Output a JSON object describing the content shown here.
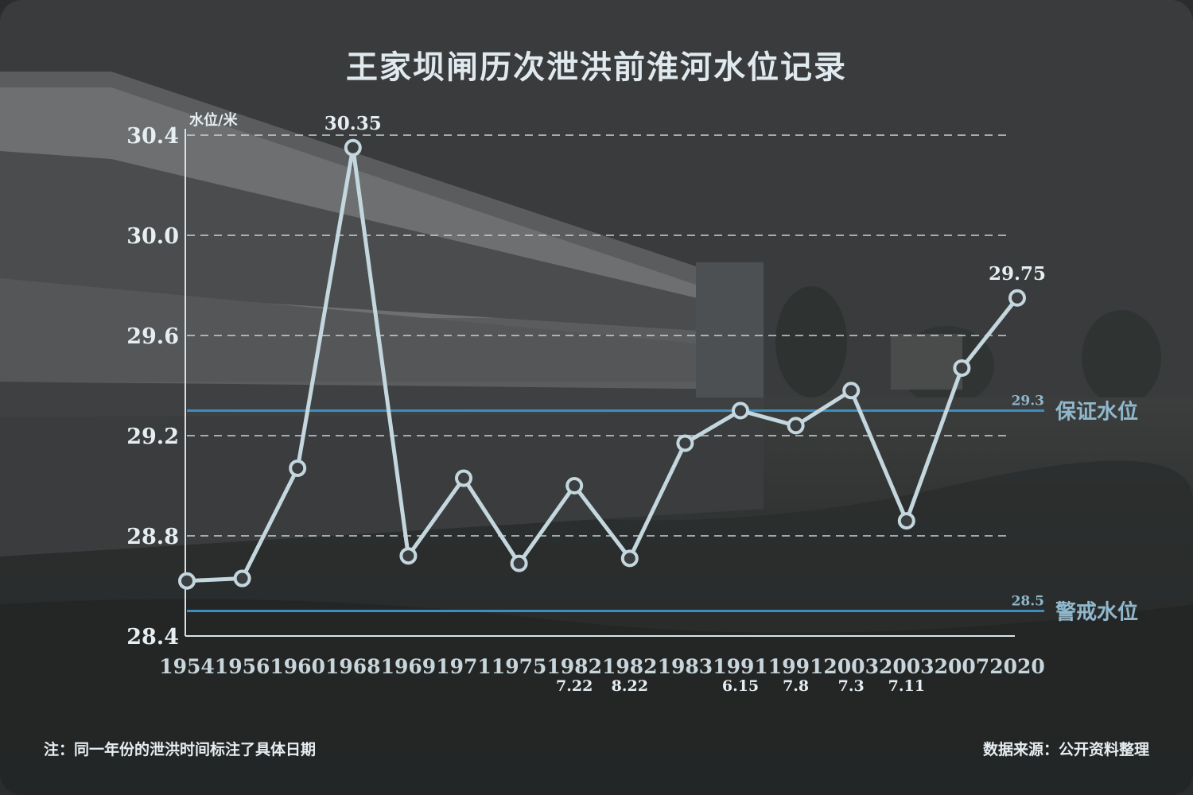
{
  "title": "王家坝闸历次泄洪前淮河水位记录",
  "note": "注：同一年份的泄洪时间标注了具体日期",
  "source": "数据来源：公开资料整理",
  "colors": {
    "line": "#c4d7de",
    "ref": "#3a8fc0",
    "ref_label": "#8fb8cc",
    "text": "#e6eef2"
  },
  "chart_data": {
    "type": "line",
    "title": "王家坝闸历次泄洪前淮河水位记录",
    "ylabel": "水位/米",
    "ylim": [
      28.4,
      30.4
    ],
    "yticks": [
      "28.4",
      "28.8",
      "29.2",
      "29.6",
      "30.0",
      "30.4"
    ],
    "grid": "dashed horizontal",
    "categories": [
      {
        "year": "1954",
        "date": ""
      },
      {
        "year": "1956",
        "date": ""
      },
      {
        "year": "1960",
        "date": ""
      },
      {
        "year": "1968",
        "date": ""
      },
      {
        "year": "1969",
        "date": ""
      },
      {
        "year": "1971",
        "date": ""
      },
      {
        "year": "1975",
        "date": ""
      },
      {
        "year": "1982",
        "date": "7.22"
      },
      {
        "year": "1982",
        "date": "8.22"
      },
      {
        "year": "1983",
        "date": ""
      },
      {
        "year": "1991",
        "date": "6.15"
      },
      {
        "year": "1991",
        "date": "7.8"
      },
      {
        "year": "2003",
        "date": "7.3"
      },
      {
        "year": "2003",
        "date": "7.11"
      },
      {
        "year": "2007",
        "date": ""
      },
      {
        "year": "2020",
        "date": ""
      }
    ],
    "values": [
      28.62,
      28.63,
      29.07,
      30.35,
      28.72,
      29.03,
      28.69,
      29.0,
      28.71,
      29.17,
      29.3,
      29.24,
      29.38,
      28.86,
      29.47,
      29.75
    ],
    "value_labels": [
      {
        "index": 3,
        "text": "30.35"
      },
      {
        "index": 15,
        "text": "29.75"
      }
    ],
    "reference_lines": [
      {
        "value": 29.3,
        "value_text": "29.3",
        "label": "保证水位"
      },
      {
        "value": 28.5,
        "value_text": "28.5",
        "label": "警戒水位"
      }
    ]
  }
}
